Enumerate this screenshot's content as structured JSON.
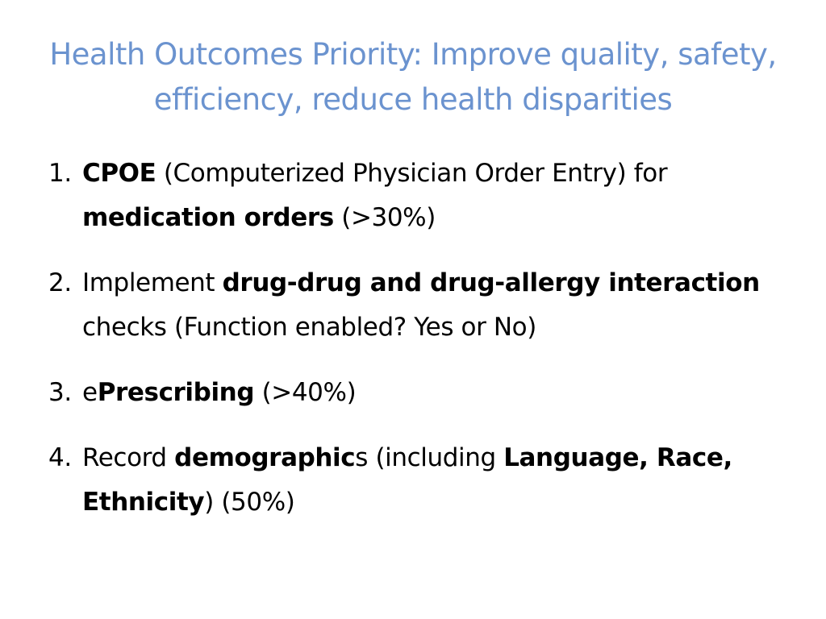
{
  "slide": {
    "title": "Health Outcomes Priority: Improve quality, safety, efficiency, reduce health disparities",
    "items": [
      {
        "number": "1.",
        "parts": [
          {
            "text": "CPOE",
            "bold": true
          },
          {
            "text": " (Computerized Physician Order Entry) for ",
            "bold": false
          },
          {
            "text": "medication orders",
            "bold": true
          },
          {
            "text": " (>30%)",
            "bold": false
          }
        ]
      },
      {
        "number": "2.",
        "parts": [
          {
            "text": "Implement ",
            "bold": false
          },
          {
            "text": "drug-drug and drug-allergy interaction",
            "bold": true
          },
          {
            "text": " checks (Function enabled? Yes or No)",
            "bold": false
          }
        ]
      },
      {
        "number": "3.",
        "parts": [
          {
            "text": "e",
            "bold": false
          },
          {
            "text": "Prescribing",
            "bold": true
          },
          {
            "text": " (>40%)",
            "bold": false
          }
        ]
      },
      {
        "number": "4.",
        "parts": [
          {
            "text": "Record ",
            "bold": false
          },
          {
            "text": "demographic",
            "bold": true
          },
          {
            "text": "s (including ",
            "bold": false
          },
          {
            "text": "Language, Race, Ethnicity",
            "bold": true
          },
          {
            "text": ") (50%)",
            "bold": false
          }
        ]
      }
    ]
  },
  "colors": {
    "title": "#6b93cf",
    "body_text": "#000000",
    "background": "#ffffff"
  }
}
